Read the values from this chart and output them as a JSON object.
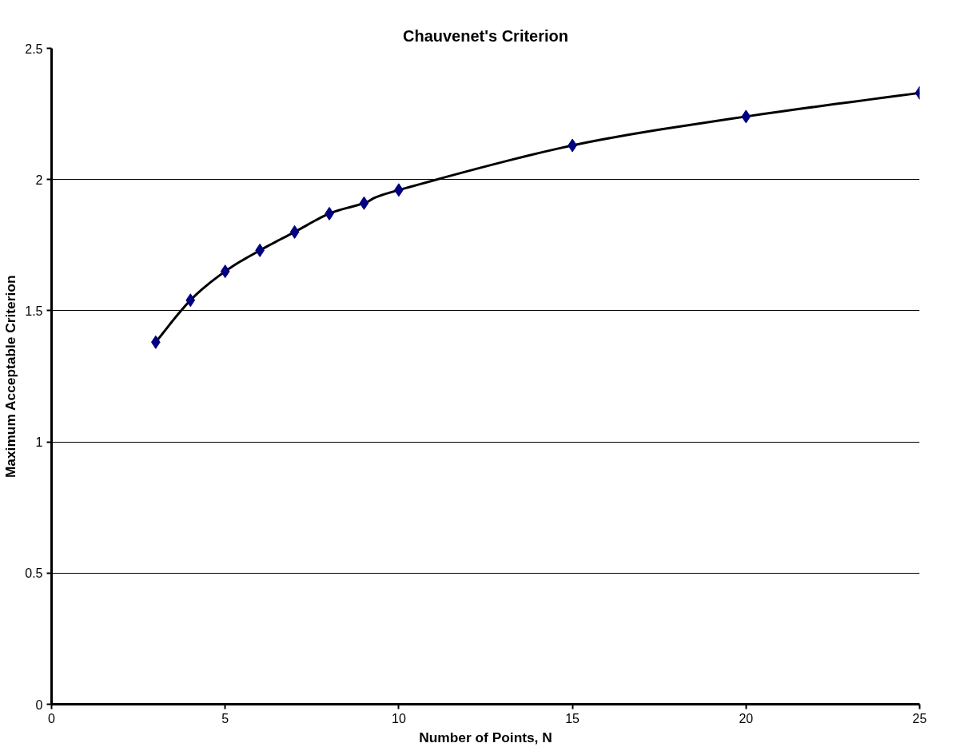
{
  "chart_data": {
    "type": "scatter",
    "title": "Chauvenet's Criterion",
    "xlabel": "Number of Points, N",
    "ylabel": "Maximum Acceptable Criterion",
    "x": [
      3,
      4,
      5,
      6,
      7,
      8,
      9,
      10,
      15,
      20,
      25
    ],
    "series": [
      {
        "type": "line",
        "color": "#000000",
        "marker": "none",
        "values": [
          1.38,
          1.54,
          1.65,
          1.73,
          1.8,
          1.87,
          1.91,
          1.96,
          2.13,
          2.24,
          2.33
        ]
      },
      {
        "color": "#000080",
        "marker": "diamond",
        "values": [
          1.38,
          1.54,
          1.65,
          1.73,
          1.8,
          1.87,
          1.91,
          1.96,
          2.13,
          2.24,
          2.33
        ]
      }
    ],
    "xlim": [
      0,
      25
    ],
    "ylim": [
      0,
      2.5
    ],
    "xticks": [
      0,
      5,
      10,
      15,
      20,
      25
    ],
    "yticks": [
      0,
      0.5,
      1,
      1.5,
      2,
      2.5
    ],
    "grid": "y"
  }
}
